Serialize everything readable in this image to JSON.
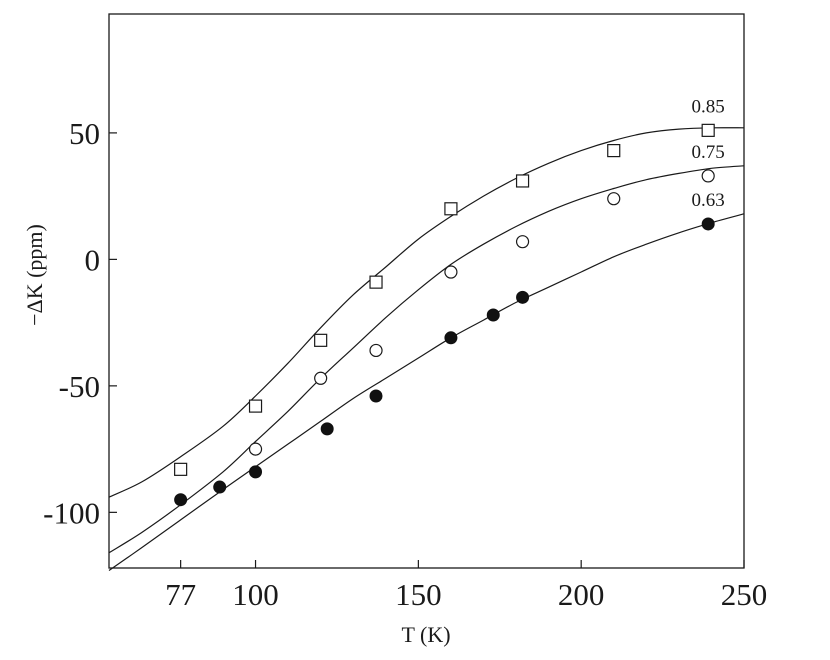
{
  "chart_data": {
    "type": "scatter",
    "title": "",
    "xlabel": "T (K)",
    "ylabel": "−ΔK (ppm)",
    "xlim": [
      55,
      250
    ],
    "ylim": [
      -122,
      97
    ],
    "xticks": [
      77,
      100,
      150,
      200,
      250
    ],
    "yticks": [
      50,
      0,
      -50,
      -100
    ],
    "ytick_labels": [
      "50",
      "0",
      "-50",
      "-100"
    ],
    "grid": false,
    "series": [
      {
        "name": "0.85",
        "marker": "open-square",
        "points": [
          {
            "x": 77,
            "y": -83
          },
          {
            "x": 100,
            "y": -58
          },
          {
            "x": 120,
            "y": -32
          },
          {
            "x": 137,
            "y": -9
          },
          {
            "x": 160,
            "y": 20
          },
          {
            "x": 182,
            "y": 31
          },
          {
            "x": 210,
            "y": 43
          },
          {
            "x": 239,
            "y": 51
          }
        ],
        "curve": [
          [
            55,
            -94
          ],
          [
            65,
            -88
          ],
          [
            77,
            -78
          ],
          [
            90,
            -66
          ],
          [
            100,
            -54
          ],
          [
            110,
            -41
          ],
          [
            120,
            -27
          ],
          [
            130,
            -14
          ],
          [
            140,
            -3
          ],
          [
            150,
            8
          ],
          [
            160,
            17
          ],
          [
            170,
            25
          ],
          [
            180,
            32
          ],
          [
            190,
            38
          ],
          [
            200,
            43
          ],
          [
            210,
            47
          ],
          [
            220,
            50
          ],
          [
            230,
            51.5
          ],
          [
            240,
            52
          ],
          [
            250,
            52
          ]
        ]
      },
      {
        "name": "0.75",
        "marker": "open-circle",
        "points": [
          {
            "x": 100,
            "y": -75
          },
          {
            "x": 120,
            "y": -47
          },
          {
            "x": 137,
            "y": -36
          },
          {
            "x": 160,
            "y": -5
          },
          {
            "x": 182,
            "y": 7
          },
          {
            "x": 210,
            "y": 24
          },
          {
            "x": 239,
            "y": 33
          }
        ],
        "curve": [
          [
            55,
            -116
          ],
          [
            65,
            -108
          ],
          [
            77,
            -97
          ],
          [
            90,
            -84
          ],
          [
            100,
            -72
          ],
          [
            110,
            -60
          ],
          [
            120,
            -47
          ],
          [
            130,
            -35
          ],
          [
            140,
            -23
          ],
          [
            150,
            -12
          ],
          [
            160,
            -2
          ],
          [
            170,
            6
          ],
          [
            180,
            13
          ],
          [
            190,
            19
          ],
          [
            200,
            24
          ],
          [
            210,
            28
          ],
          [
            220,
            31.5
          ],
          [
            230,
            34
          ],
          [
            240,
            36
          ],
          [
            250,
            37
          ]
        ]
      },
      {
        "name": "0.63",
        "marker": "filled-circle",
        "points": [
          {
            "x": 77,
            "y": -95
          },
          {
            "x": 89,
            "y": -90
          },
          {
            "x": 100,
            "y": -84
          },
          {
            "x": 122,
            "y": -67
          },
          {
            "x": 137,
            "y": -54
          },
          {
            "x": 160,
            "y": -31
          },
          {
            "x": 173,
            "y": -22
          },
          {
            "x": 182,
            "y": -15
          },
          {
            "x": 239,
            "y": 14
          }
        ],
        "curve": [
          [
            55,
            -123
          ],
          [
            65,
            -114
          ],
          [
            77,
            -103
          ],
          [
            90,
            -91
          ],
          [
            100,
            -82
          ],
          [
            110,
            -73
          ],
          [
            120,
            -64
          ],
          [
            130,
            -55
          ],
          [
            140,
            -47
          ],
          [
            150,
            -39
          ],
          [
            160,
            -31
          ],
          [
            170,
            -24
          ],
          [
            180,
            -17
          ],
          [
            190,
            -11
          ],
          [
            200,
            -5
          ],
          [
            210,
            1
          ],
          [
            220,
            6
          ],
          [
            230,
            10.5
          ],
          [
            240,
            14.5
          ],
          [
            250,
            18
          ]
        ]
      }
    ]
  }
}
